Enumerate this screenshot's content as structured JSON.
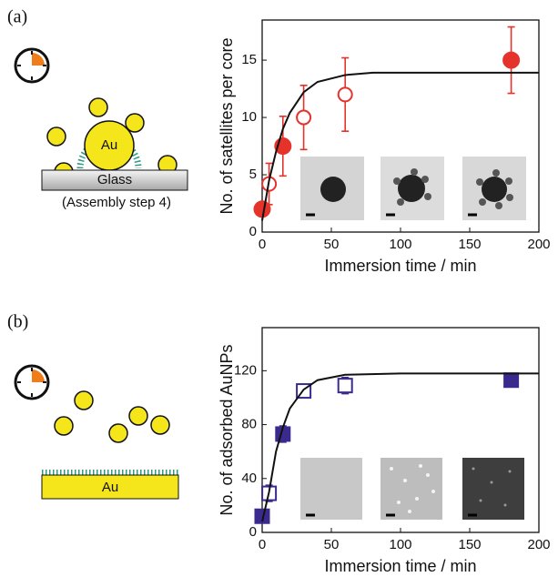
{
  "chart_data": [
    {
      "type": "scatter",
      "panel_label": "(a)",
      "diagram_labels": [
        "Au",
        "Glass",
        "(Assembly step 4)"
      ],
      "x_label": "Immersion time / min",
      "y_label": "No. of satellites per core",
      "xlim": [
        0,
        200
      ],
      "xticks": [
        0,
        50,
        100,
        150,
        200
      ],
      "ylim": [
        0,
        18.5
      ],
      "yticks": [
        0,
        5,
        10,
        15
      ],
      "series": [
        {
          "color": "#e5322b",
          "marker": "circle",
          "filled": true,
          "x": [
            0,
            15,
            180
          ],
          "values": [
            2,
            7.5,
            15
          ],
          "errors": [
            0.5,
            2.6,
            2.9
          ]
        },
        {
          "color": "#e5322b",
          "marker": "circle",
          "filled": false,
          "x": [
            5,
            30,
            60
          ],
          "values": [
            4.2,
            10,
            12
          ],
          "errors": [
            1.8,
            2.8,
            3.2
          ]
        },
        {
          "color": "#111111",
          "marker": "line",
          "x": [
            0,
            5,
            10,
            15,
            20,
            30,
            40,
            60,
            80,
            100,
            150,
            200
          ],
          "values": [
            1,
            4.5,
            7,
            9,
            10.4,
            12.2,
            13.1,
            13.7,
            13.9,
            13.9,
            13.9,
            13.9
          ]
        }
      ]
    },
    {
      "type": "scatter",
      "panel_label": "(b)",
      "diagram_labels": [
        "Au"
      ],
      "x_label": "Immersion time / min",
      "y_label": "No. of adsorbed AuNPs",
      "xlim": [
        0,
        200
      ],
      "xticks": [
        0,
        50,
        100,
        150,
        200
      ],
      "ylim": [
        0,
        152
      ],
      "yticks": [
        0,
        40,
        80,
        120
      ],
      "series": [
        {
          "color": "#3b2a8e",
          "marker": "square",
          "filled": true,
          "x": [
            0,
            15,
            180
          ],
          "values": [
            12,
            73,
            113
          ],
          "errors": [
            4,
            6,
            3
          ]
        },
        {
          "color": "#3b2a8e",
          "marker": "square",
          "filled": false,
          "x": [
            5,
            30,
            60
          ],
          "values": [
            29,
            105,
            109
          ],
          "errors": [
            6,
            5,
            6
          ]
        },
        {
          "color": "#111111",
          "marker": "line",
          "x": [
            0,
            5,
            10,
            15,
            20,
            30,
            40,
            60,
            100,
            200
          ],
          "values": [
            8,
            30,
            60,
            78,
            92,
            106,
            113,
            117,
            118,
            118
          ]
        }
      ]
    }
  ]
}
